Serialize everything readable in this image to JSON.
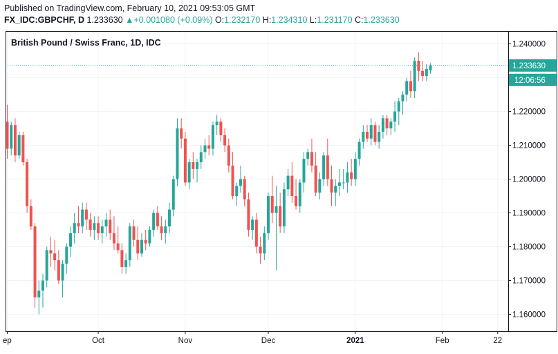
{
  "header": {
    "published": "Published on TradingView.com, February 10, 2021 09:53:05 GMT",
    "symbol": "FX_IDC:GBPCHF, D",
    "last": "1.233630",
    "change_arrow": "▲",
    "change": "+0.001080 (+0.09%)",
    "o_label": "O:",
    "o_value": "1.232170",
    "h_label": "H:",
    "h_value": "1.234310",
    "l_label": "L:",
    "l_value": "1.231170",
    "c_label": "C:",
    "c_value": "1.233630"
  },
  "colors": {
    "up": "#26a69a",
    "down": "#ef5350",
    "grid": "#f0f3fa",
    "axis": "#131722"
  },
  "chart_data": {
    "type": "candlestick",
    "title": "British Pound / Swiss Franc, 1D, IDC",
    "ylim": [
      1.155,
      1.2438
    ],
    "y_ticks": [
      1.16,
      1.17,
      1.18,
      1.19,
      1.2,
      1.21,
      1.22,
      1.23,
      1.24
    ],
    "y_tick_labels": [
      "1.160000",
      "1.170000",
      "1.180000",
      "1.190000",
      "1.200000",
      "1.210000",
      "1.220000",
      "1.230000",
      "1.240000"
    ],
    "x_labels": [
      {
        "label": "ep",
        "index": 0
      },
      {
        "label": "Oct",
        "index": 23
      },
      {
        "label": "Nov",
        "index": 45
      },
      {
        "label": "Dec",
        "index": 66
      },
      {
        "label": "2021",
        "index": 88
      },
      {
        "label": "Feb",
        "index": 110
      },
      {
        "label": "22",
        "index": 124
      }
    ],
    "last_price": "1.233630",
    "last_price_value": 1.23363,
    "countdown": "12:06:56",
    "candles": [
      [
        1.217,
        1.222,
        1.206,
        1.209
      ],
      [
        1.209,
        1.217,
        1.207,
        1.216
      ],
      [
        1.216,
        1.218,
        1.205,
        1.207
      ],
      [
        1.207,
        1.214,
        1.206,
        1.213
      ],
      [
        1.213,
        1.214,
        1.204,
        1.205
      ],
      [
        1.205,
        1.206,
        1.19,
        1.192
      ],
      [
        1.192,
        1.194,
        1.185,
        1.186
      ],
      [
        1.186,
        1.187,
        1.162,
        1.165
      ],
      [
        1.165,
        1.17,
        1.16,
        1.167
      ],
      [
        1.167,
        1.172,
        1.162,
        1.17
      ],
      [
        1.17,
        1.18,
        1.168,
        1.179
      ],
      [
        1.179,
        1.183,
        1.174,
        1.178
      ],
      [
        1.178,
        1.182,
        1.173,
        1.176
      ],
      [
        1.176,
        1.179,
        1.169,
        1.17
      ],
      [
        1.17,
        1.176,
        1.165,
        1.175
      ],
      [
        1.175,
        1.181,
        1.172,
        1.18
      ],
      [
        1.18,
        1.186,
        1.177,
        1.184
      ],
      [
        1.184,
        1.19,
        1.181,
        1.187
      ],
      [
        1.187,
        1.192,
        1.184,
        1.186
      ],
      [
        1.186,
        1.193,
        1.184,
        1.191
      ],
      [
        1.191,
        1.193,
        1.185,
        1.188
      ],
      [
        1.188,
        1.19,
        1.183,
        1.185
      ],
      [
        1.185,
        1.189,
        1.182,
        1.187
      ],
      [
        1.187,
        1.189,
        1.182,
        1.184
      ],
      [
        1.184,
        1.188,
        1.181,
        1.186
      ],
      [
        1.186,
        1.19,
        1.183,
        1.188
      ],
      [
        1.188,
        1.191,
        1.182,
        1.184
      ],
      [
        1.184,
        1.189,
        1.179,
        1.181
      ],
      [
        1.181,
        1.186,
        1.178,
        1.179
      ],
      [
        1.179,
        1.181,
        1.172,
        1.174
      ],
      [
        1.174,
        1.178,
        1.172,
        1.176
      ],
      [
        1.176,
        1.187,
        1.174,
        1.186
      ],
      [
        1.186,
        1.188,
        1.18,
        1.182
      ],
      [
        1.182,
        1.186,
        1.176,
        1.178
      ],
      [
        1.178,
        1.184,
        1.177,
        1.182
      ],
      [
        1.182,
        1.185,
        1.179,
        1.181
      ],
      [
        1.181,
        1.186,
        1.18,
        1.185
      ],
      [
        1.185,
        1.191,
        1.183,
        1.19
      ],
      [
        1.19,
        1.192,
        1.185,
        1.186
      ],
      [
        1.186,
        1.189,
        1.182,
        1.184
      ],
      [
        1.184,
        1.188,
        1.181,
        1.186
      ],
      [
        1.186,
        1.193,
        1.184,
        1.191
      ],
      [
        1.191,
        1.201,
        1.189,
        1.2
      ],
      [
        1.2,
        1.218,
        1.198,
        1.215
      ],
      [
        1.215,
        1.218,
        1.209,
        1.212
      ],
      [
        1.212,
        1.214,
        1.198,
        1.199
      ],
      [
        1.199,
        1.206,
        1.197,
        1.205
      ],
      [
        1.205,
        1.208,
        1.2,
        1.203
      ],
      [
        1.203,
        1.206,
        1.199,
        1.205
      ],
      [
        1.205,
        1.21,
        1.203,
        1.208
      ],
      [
        1.208,
        1.212,
        1.206,
        1.21
      ],
      [
        1.21,
        1.213,
        1.207,
        1.209
      ],
      [
        1.209,
        1.217,
        1.207,
        1.216
      ],
      [
        1.216,
        1.219,
        1.213,
        1.217
      ],
      [
        1.217,
        1.218,
        1.211,
        1.213
      ],
      [
        1.213,
        1.215,
        1.208,
        1.21
      ],
      [
        1.21,
        1.212,
        1.202,
        1.204
      ],
      [
        1.204,
        1.208,
        1.194,
        1.195
      ],
      [
        1.195,
        1.199,
        1.192,
        1.198
      ],
      [
        1.198,
        1.204,
        1.196,
        1.2
      ],
      [
        1.2,
        1.201,
        1.192,
        1.194
      ],
      [
        1.194,
        1.196,
        1.183,
        1.185
      ],
      [
        1.185,
        1.189,
        1.182,
        1.188
      ],
      [
        1.188,
        1.19,
        1.178,
        1.18
      ],
      [
        1.18,
        1.183,
        1.175,
        1.178
      ],
      [
        1.178,
        1.186,
        1.176,
        1.184
      ],
      [
        1.184,
        1.196,
        1.182,
        1.195
      ],
      [
        1.195,
        1.201,
        1.187,
        1.19
      ],
      [
        1.19,
        1.198,
        1.173,
        1.192
      ],
      [
        1.192,
        1.196,
        1.184,
        1.186
      ],
      [
        1.186,
        1.199,
        1.184,
        1.197
      ],
      [
        1.197,
        1.203,
        1.195,
        1.201
      ],
      [
        1.201,
        1.205,
        1.193,
        1.195
      ],
      [
        1.195,
        1.2,
        1.191,
        1.192
      ],
      [
        1.192,
        1.2,
        1.19,
        1.199
      ],
      [
        1.199,
        1.208,
        1.196,
        1.206
      ],
      [
        1.206,
        1.209,
        1.204,
        1.208
      ],
      [
        1.208,
        1.212,
        1.202,
        1.204
      ],
      [
        1.204,
        1.208,
        1.195,
        1.196
      ],
      [
        1.196,
        1.202,
        1.194,
        1.2
      ],
      [
        1.2,
        1.208,
        1.198,
        1.207
      ],
      [
        1.207,
        1.212,
        1.198,
        1.2
      ],
      [
        1.2,
        1.204,
        1.192,
        1.196
      ],
      [
        1.196,
        1.2,
        1.192,
        1.198
      ],
      [
        1.198,
        1.203,
        1.195,
        1.199
      ],
      [
        1.199,
        1.203,
        1.197,
        1.199
      ],
      [
        1.199,
        1.205,
        1.196,
        1.202
      ],
      [
        1.202,
        1.206,
        1.198,
        1.2
      ],
      [
        1.2,
        1.208,
        1.198,
        1.206
      ],
      [
        1.206,
        1.212,
        1.204,
        1.211
      ],
      [
        1.211,
        1.216,
        1.209,
        1.214
      ],
      [
        1.214,
        1.216,
        1.211,
        1.212
      ],
      [
        1.212,
        1.218,
        1.21,
        1.216
      ],
      [
        1.216,
        1.217,
        1.21,
        1.211
      ],
      [
        1.211,
        1.216,
        1.209,
        1.214
      ],
      [
        1.214,
        1.219,
        1.212,
        1.218
      ],
      [
        1.218,
        1.219,
        1.213,
        1.215
      ],
      [
        1.215,
        1.218,
        1.213,
        1.217
      ],
      [
        1.217,
        1.223,
        1.214,
        1.22
      ],
      [
        1.22,
        1.224,
        1.216,
        1.223
      ],
      [
        1.223,
        1.226,
        1.219,
        1.225
      ],
      [
        1.225,
        1.23,
        1.223,
        1.229
      ],
      [
        1.229,
        1.232,
        1.224,
        1.226
      ],
      [
        1.226,
        1.236,
        1.224,
        1.235
      ],
      [
        1.235,
        1.2375,
        1.229,
        1.232
      ],
      [
        1.232,
        1.235,
        1.229,
        1.2305
      ],
      [
        1.2305,
        1.234,
        1.229,
        1.2326
      ],
      [
        1.23217,
        1.23431,
        1.23117,
        1.23363
      ]
    ]
  }
}
